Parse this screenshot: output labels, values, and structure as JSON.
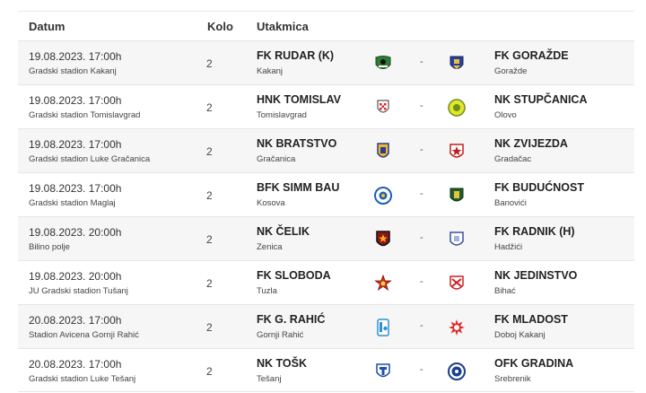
{
  "header": {
    "date_label": "Datum",
    "round_label": "Kolo",
    "match_label": "Utakmica"
  },
  "matches": [
    {
      "date": "19.08.2023. 17:00h",
      "venue": "Gradski stadion Kakanj",
      "round": "2",
      "home": {
        "name": "FK RUDAR (K)",
        "city": "Kakanj",
        "logo": "rudar-crest-icon"
      },
      "separator": "-",
      "away": {
        "name": "FK GORAŽDE",
        "city": "Goražde",
        "logo": "gorazde-crest-icon"
      }
    },
    {
      "date": "19.08.2023. 17:00h",
      "venue": "Gradski stadion Tomislavgrad",
      "round": "2",
      "home": {
        "name": "HNK TOMISLAV",
        "city": "Tomislavgrad",
        "logo": "tomislav-crest-icon"
      },
      "separator": "-",
      "away": {
        "name": "NK STUPČANICA",
        "city": "Olovo",
        "logo": "stupcanica-crest-icon"
      }
    },
    {
      "date": "19.08.2023. 17:00h",
      "venue": "Gradski stadion Luke Gračanica",
      "round": "2",
      "home": {
        "name": "NK BRATSTVO",
        "city": "Gračanica",
        "logo": "bratstvo-crest-icon"
      },
      "separator": "-",
      "away": {
        "name": "NK ZVIJEZDA",
        "city": "Gradačac",
        "logo": "zvijezda-crest-icon"
      }
    },
    {
      "date": "19.08.2023. 17:00h",
      "venue": "Gradski stadion Maglaj",
      "round": "2",
      "home": {
        "name": "BFK SIMM BAU",
        "city": "Kosova",
        "logo": "simm-bau-crest-icon"
      },
      "separator": "-",
      "away": {
        "name": "FK BUDUĆNOST",
        "city": "Banovići",
        "logo": "buducnost-crest-icon"
      }
    },
    {
      "date": "19.08.2023. 20:00h",
      "venue": "Bilino polje",
      "round": "2",
      "home": {
        "name": "NK ČELIK",
        "city": "Zenica",
        "logo": "celik-crest-icon"
      },
      "separator": "-",
      "away": {
        "name": "FK RADNIK (H)",
        "city": "Hadžići",
        "logo": "radnik-crest-icon"
      }
    },
    {
      "date": "19.08.2023. 20:00h",
      "venue": "JU Gradski stadion Tušanj",
      "round": "2",
      "home": {
        "name": "FK SLOBODA",
        "city": "Tuzla",
        "logo": "sloboda-crest-icon"
      },
      "separator": "-",
      "away": {
        "name": "NK JEDINSTVO",
        "city": "Bihać",
        "logo": "jedinstvo-crest-icon"
      }
    },
    {
      "date": "20.08.2023. 17:00h",
      "venue": "Stadion Avicena Gornji Rahić",
      "round": "2",
      "home": {
        "name": "FK G. RAHIĆ",
        "city": "Gornji Rahić",
        "logo": "rahic-crest-icon"
      },
      "separator": "-",
      "away": {
        "name": "FK MLADOST",
        "city": "Doboj Kakanj",
        "logo": "mladost-crest-icon"
      }
    },
    {
      "date": "20.08.2023. 17:00h",
      "venue": "Gradski stadion Luke Tešanj",
      "round": "2",
      "home": {
        "name": "NK TOŠK",
        "city": "Tešanj",
        "logo": "tosk-crest-icon"
      },
      "separator": "-",
      "away": {
        "name": "OFK GRADINA",
        "city": "Srebrenik",
        "logo": "gradina-crest-icon"
      }
    }
  ]
}
